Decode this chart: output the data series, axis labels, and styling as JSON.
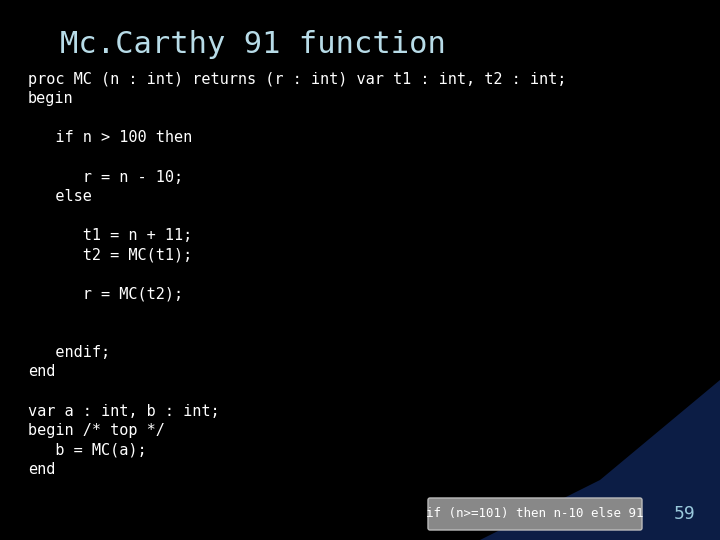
{
  "title": "Mc.Carthy 91 function",
  "title_color": "#b8dce8",
  "background_color": "#000000",
  "code_color": "#ffffff",
  "code_lines": [
    "proc MC (n : int) returns (r : int) var t1 : int, t2 : int;",
    "begin",
    "",
    "   if n > 100 then",
    "",
    "      r = n - 10;",
    "   else",
    "",
    "      t1 = n + 11;",
    "      t2 = MC(t1);",
    "",
    "      r = MC(t2);",
    "",
    "",
    "   endif;",
    "end",
    "",
    "var a : int, b : int;",
    "begin /* top */",
    "   b = MC(a);",
    "end"
  ],
  "footer_label": "if (n>=101) then n-10 else 91",
  "footer_label_color": "#ffffff",
  "footer_bg_color": "#909090",
  "page_number": "59",
  "page_number_color": "#99c8dc",
  "font_size_title": 22,
  "font_size_code": 11,
  "font_size_footer": 9,
  "font_size_page": 13
}
